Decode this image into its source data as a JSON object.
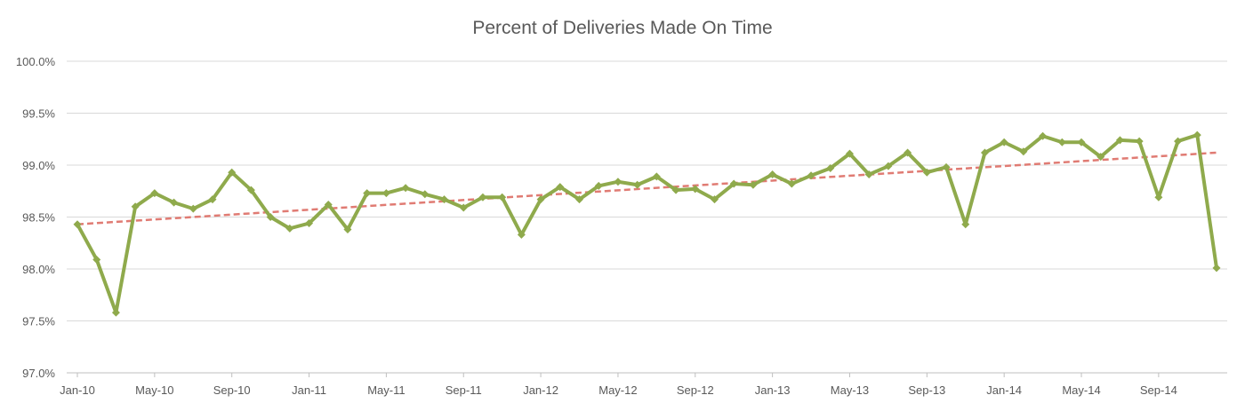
{
  "chart_data": {
    "type": "line",
    "title": "Percent of Deliveries Made On Time",
    "xlabel": "",
    "ylabel": "",
    "ylim": [
      97.0,
      100.0
    ],
    "y_ticks": [
      "97.0%",
      "97.5%",
      "98.0%",
      "98.5%",
      "99.0%",
      "99.5%",
      "100.0%"
    ],
    "y_tick_values": [
      97.0,
      97.5,
      98.0,
      98.5,
      99.0,
      99.5,
      100.0
    ],
    "x_tick_labels": [
      "Jan-10",
      "May-10",
      "Sep-10",
      "Jan-11",
      "May-11",
      "Sep-11",
      "Jan-12",
      "May-12",
      "Sep-12",
      "Jan-13",
      "May-13",
      "Sep-13",
      "Jan-14",
      "May-14",
      "Sep-14"
    ],
    "x": [
      "Jan-10",
      "Feb-10",
      "Mar-10",
      "Apr-10",
      "May-10",
      "Jun-10",
      "Jul-10",
      "Aug-10",
      "Sep-10",
      "Oct-10",
      "Nov-10",
      "Dec-10",
      "Jan-11",
      "Feb-11",
      "Mar-11",
      "Apr-11",
      "May-11",
      "Jun-11",
      "Jul-11",
      "Aug-11",
      "Sep-11",
      "Oct-11",
      "Nov-11",
      "Dec-11",
      "Jan-12",
      "Feb-12",
      "Mar-12",
      "Apr-12",
      "May-12",
      "Jun-12",
      "Jul-12",
      "Aug-12",
      "Sep-12",
      "Oct-12",
      "Nov-12",
      "Dec-12",
      "Jan-13",
      "Feb-13",
      "Mar-13",
      "Apr-13",
      "May-13",
      "Jun-13",
      "Jul-13",
      "Aug-13",
      "Sep-13",
      "Oct-13",
      "Nov-13",
      "Dec-13",
      "Jan-14",
      "Feb-14",
      "Mar-14",
      "Apr-14",
      "May-14",
      "Jun-14",
      "Jul-14",
      "Aug-14",
      "Sep-14",
      "Oct-14",
      "Nov-14",
      "Dec-14"
    ],
    "series": [
      {
        "values": [
          98.43,
          98.09,
          97.58,
          98.6,
          98.73,
          98.64,
          98.58,
          98.67,
          98.93,
          98.76,
          98.5,
          98.39,
          98.44,
          98.62,
          98.38,
          98.73,
          98.73,
          98.78,
          98.72,
          98.67,
          98.59,
          98.69,
          98.69,
          98.33,
          98.67,
          98.79,
          98.67,
          98.8,
          98.84,
          98.81,
          98.89,
          98.76,
          98.77,
          98.67,
          98.82,
          98.81,
          98.91,
          98.82,
          98.9,
          98.97,
          99.11,
          98.91,
          98.99,
          99.12,
          98.93,
          98.98,
          98.43,
          99.12,
          99.22,
          99.13,
          99.28,
          99.22,
          99.22,
          99.08,
          99.24,
          99.23,
          98.69,
          99.23,
          99.29,
          98.01
        ],
        "color": "#8faa4c"
      }
    ],
    "trendline": {
      "start": 98.43,
      "end": 99.12,
      "color": "#e07b73",
      "style": "dashed"
    },
    "grid": true,
    "legend": "none"
  }
}
